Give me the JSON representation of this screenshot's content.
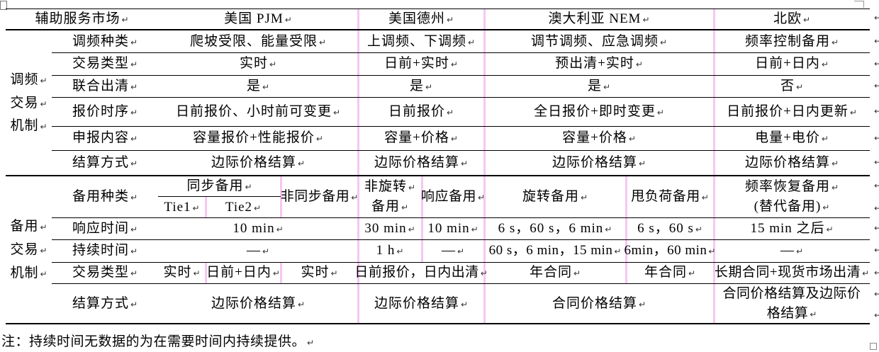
{
  "header": {
    "market": "辅助服务市场",
    "pjm": "美国 PJM",
    "texas": "美国德州",
    "nem": "澳大利亚 NEM",
    "nordic": "北欧"
  },
  "freq": {
    "side": [
      "调频",
      "交易",
      "机制"
    ],
    "rows": [
      {
        "label": "调频种类",
        "pjm": "爬坡受限、能量受限",
        "texas": "上调频、下调频",
        "nem": "调节调频、应急调频",
        "nordic": "频率控制备用"
      },
      {
        "label": "交易类型",
        "pjm": "实时",
        "texas": "日前+实时",
        "nem": "预出清+实时",
        "nordic": "日前+日内"
      },
      {
        "label": "联合出清",
        "pjm": "是",
        "texas": "是",
        "nem": "是",
        "nordic": "否"
      },
      {
        "label": "报价时序",
        "pjm": "日前报价、小时前可变更",
        "texas": "日前报价",
        "nem": "全日报价+即时变更",
        "nordic": "日前报价+日内更新"
      },
      {
        "label": "申报内容",
        "pjm": "容量报价+性能报价",
        "texas": "容量+价格",
        "nem": "容量+价格",
        "nordic": "电量+电价"
      },
      {
        "label": "结算方式",
        "pjm": "边际价格结算",
        "texas": "边际价格结算",
        "nem": "边际价格结算",
        "nordic": "边际价格结算"
      }
    ]
  },
  "reserve": {
    "side": [
      "备用",
      "交易",
      "机制"
    ],
    "kind": {
      "label": "备用种类",
      "sync": "同步备用",
      "tie1": "Tie1",
      "tie2": "Tie2",
      "nonsync": "非同步备用",
      "tx_nonspin_1": "非旋转",
      "tx_nonspin_2": "备用",
      "tx_resp": "响应备用",
      "nem_spin": "旋转备用",
      "nem_shed": "甩负荷备用",
      "nordic_1": "频率恢复备用",
      "nordic_2": "(替代备用)"
    },
    "response": {
      "label": "响应时间",
      "pjm": "10 min",
      "tx_nonspin": "30 min",
      "tx_resp": "10 min",
      "nem_spin": "6 s，60 s，6 min",
      "nem_shed": "6 s，60 s",
      "nordic": "15 min 之后"
    },
    "duration": {
      "label": "持续时间",
      "pjm": "—",
      "tx_nonspin": "1 h",
      "tx_resp": "—",
      "nem_spin": "60 s，6 min，15 min",
      "nem_shed": "6min，60 min",
      "nordic": "—"
    },
    "trade": {
      "label": "交易类型",
      "tie1": "实时",
      "tie2": "日前+日内",
      "nonsync": "实时",
      "texas": "日前报价，日内出清",
      "nem_spin": "年合同",
      "nem_shed": "年合同",
      "nordic": "长期合同+现货市场出清"
    },
    "settle": {
      "label": "结算方式",
      "pjm": "边际价格结算",
      "texas": "边际价格结算",
      "nem": "合同价格结算",
      "nordic": "合同价格结算及边际价格结算"
    }
  },
  "note": "注：持续时间无数据的为在需要时间内持续提供。",
  "marks": {
    "pilcrow": "↵"
  },
  "colors": {
    "border": "#000000",
    "grid_pink": "#f7c6f3",
    "text": "#000000"
  }
}
